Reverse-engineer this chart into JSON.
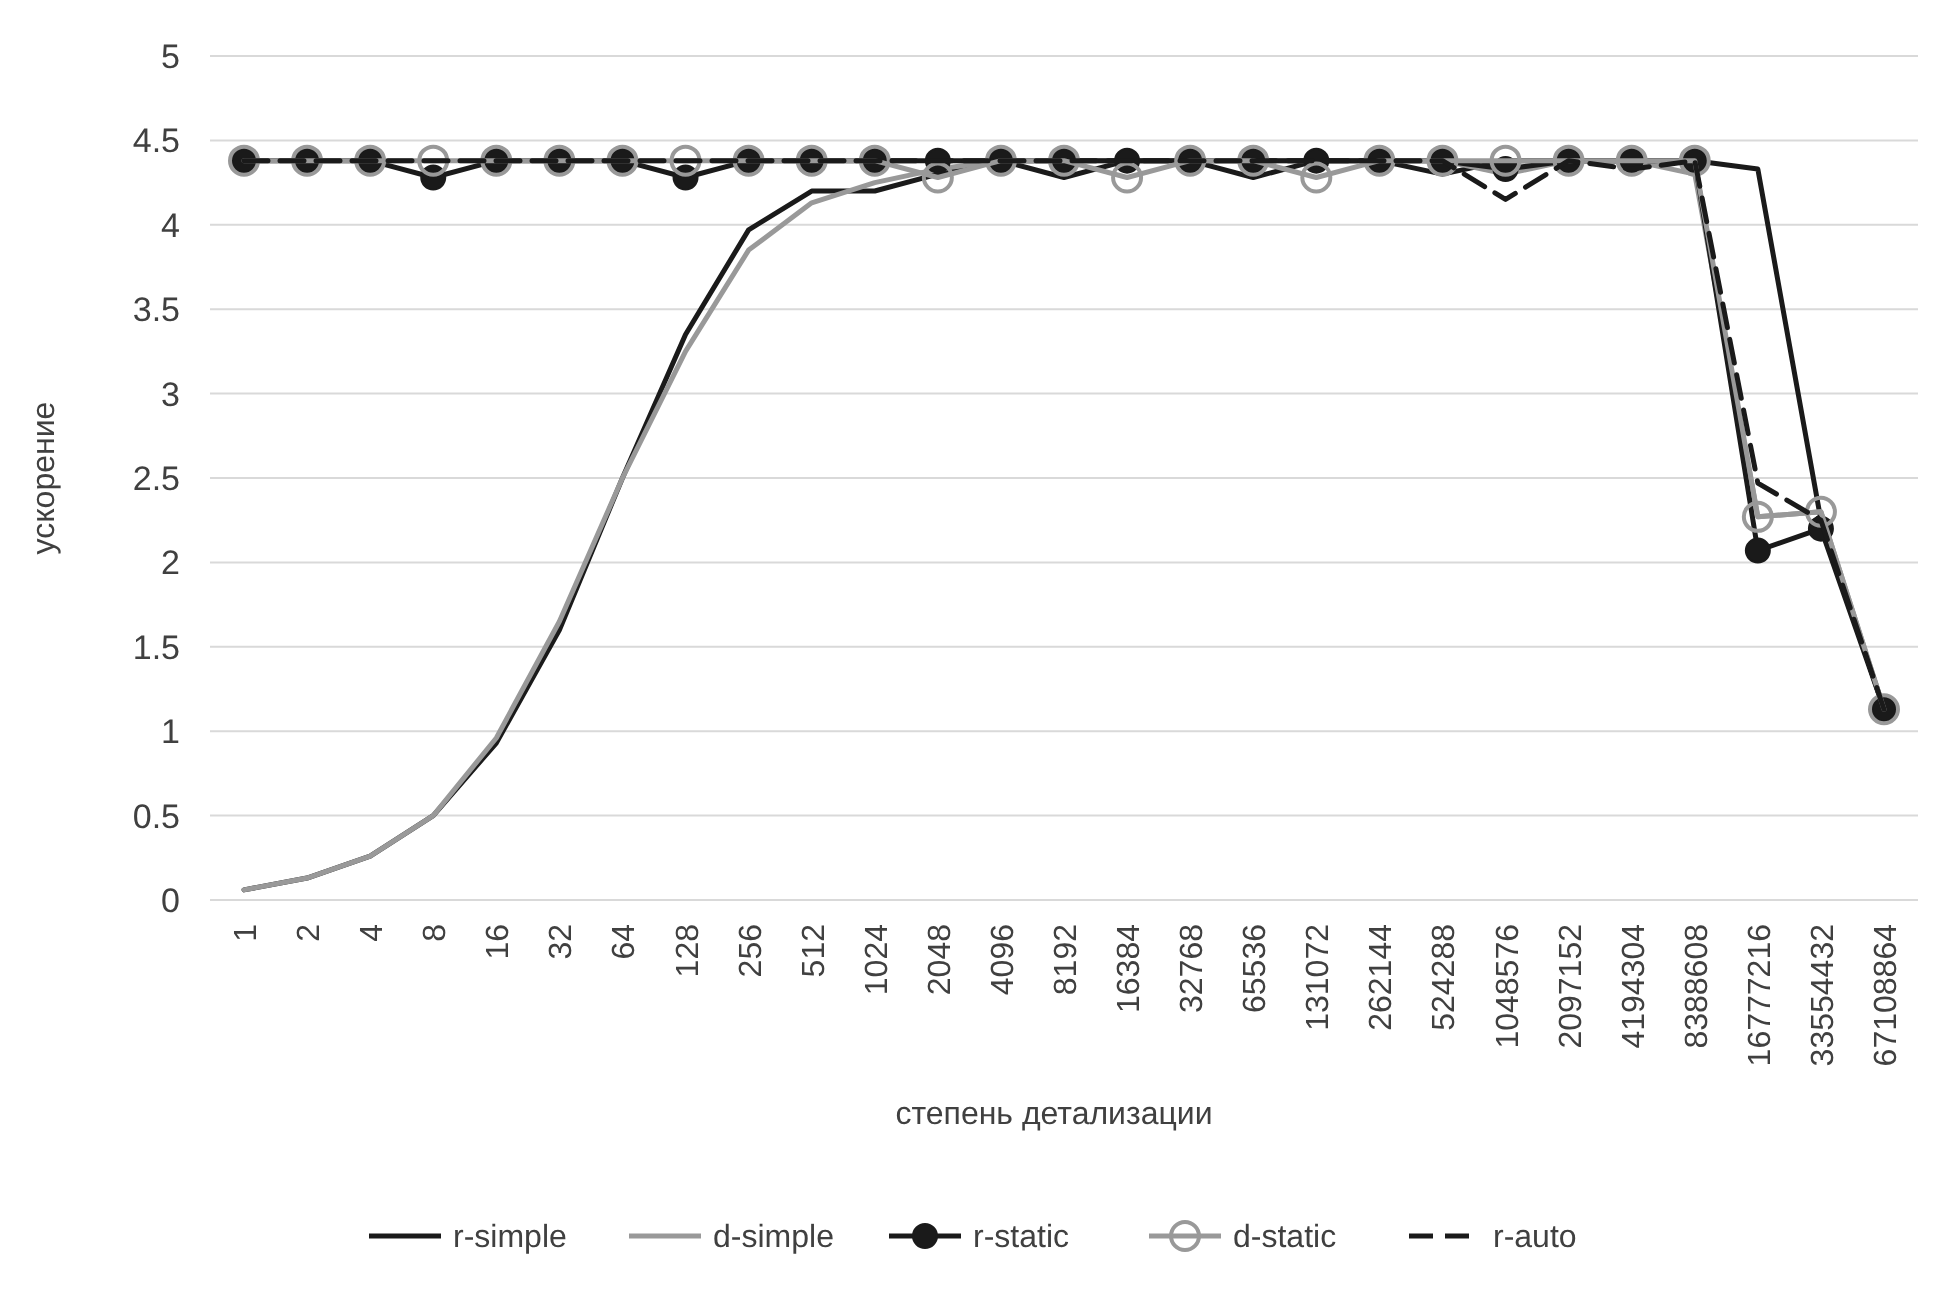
{
  "chart_data": {
    "type": "line",
    "xlabel": "степень детализации",
    "ylabel": "ускорение",
    "categories": [
      "1",
      "2",
      "4",
      "8",
      "16",
      "32",
      "64",
      "128",
      "256",
      "512",
      "1024",
      "2048",
      "4096",
      "8192",
      "16384",
      "32768",
      "65536",
      "131072",
      "262144",
      "524288",
      "1048576",
      "2097152",
      "4194304",
      "8388608",
      "16777216",
      "33554432",
      "67108864"
    ],
    "series": [
      {
        "name": "r-simple",
        "color": "#1a1a1a",
        "marker": "none",
        "line_style": "solid",
        "values": [
          0.06,
          0.13,
          0.26,
          0.5,
          0.93,
          1.6,
          2.5,
          3.35,
          3.97,
          4.2,
          4.2,
          4.3,
          4.38,
          4.28,
          4.38,
          4.38,
          4.28,
          4.38,
          4.38,
          4.3,
          4.38,
          4.38,
          4.38,
          4.38,
          4.33,
          2.25,
          1.13
        ]
      },
      {
        "name": "d-simple",
        "color": "#999999",
        "marker": "none",
        "line_style": "solid",
        "values": [
          0.06,
          0.13,
          0.26,
          0.5,
          0.96,
          1.65,
          2.5,
          3.25,
          3.85,
          4.13,
          4.25,
          4.33,
          4.38,
          4.38,
          4.38,
          4.38,
          4.38,
          4.38,
          4.38,
          4.38,
          4.3,
          4.38,
          4.38,
          4.3,
          2.27,
          2.3,
          1.13
        ]
      },
      {
        "name": "r-static",
        "color": "#1a1a1a",
        "marker": "circle",
        "line_style": "solid",
        "values": [
          4.38,
          4.38,
          4.38,
          4.28,
          4.38,
          4.38,
          4.38,
          4.28,
          4.38,
          4.38,
          4.38,
          4.38,
          4.38,
          4.38,
          4.38,
          4.38,
          4.38,
          4.38,
          4.38,
          4.38,
          4.33,
          4.38,
          4.38,
          4.38,
          2.07,
          2.2,
          1.13
        ]
      },
      {
        "name": "d-static",
        "color": "#999999",
        "marker": "circle-open",
        "line_style": "solid",
        "values": [
          4.38,
          4.38,
          4.38,
          4.38,
          4.38,
          4.38,
          4.38,
          4.38,
          4.38,
          4.38,
          4.38,
          4.28,
          4.38,
          4.38,
          4.28,
          4.38,
          4.38,
          4.28,
          4.38,
          4.38,
          4.38,
          4.38,
          4.38,
          4.38,
          2.27,
          2.3,
          1.13
        ]
      },
      {
        "name": "r-auto",
        "color": "#1a1a1a",
        "marker": "none",
        "line_style": "dashed",
        "values": [
          4.38,
          4.38,
          4.38,
          4.38,
          4.38,
          4.38,
          4.38,
          4.38,
          4.38,
          4.38,
          4.38,
          4.38,
          4.38,
          4.38,
          4.38,
          4.38,
          4.38,
          4.38,
          4.38,
          4.38,
          4.15,
          4.38,
          4.33,
          4.38,
          2.47,
          2.25,
          1.13
        ]
      }
    ],
    "ylim": [
      0,
      5
    ],
    "yticks": [
      0,
      0.5,
      1,
      1.5,
      2,
      2.5,
      3,
      3.5,
      4,
      4.5,
      5
    ],
    "grid": "y",
    "legend": "bottom"
  }
}
